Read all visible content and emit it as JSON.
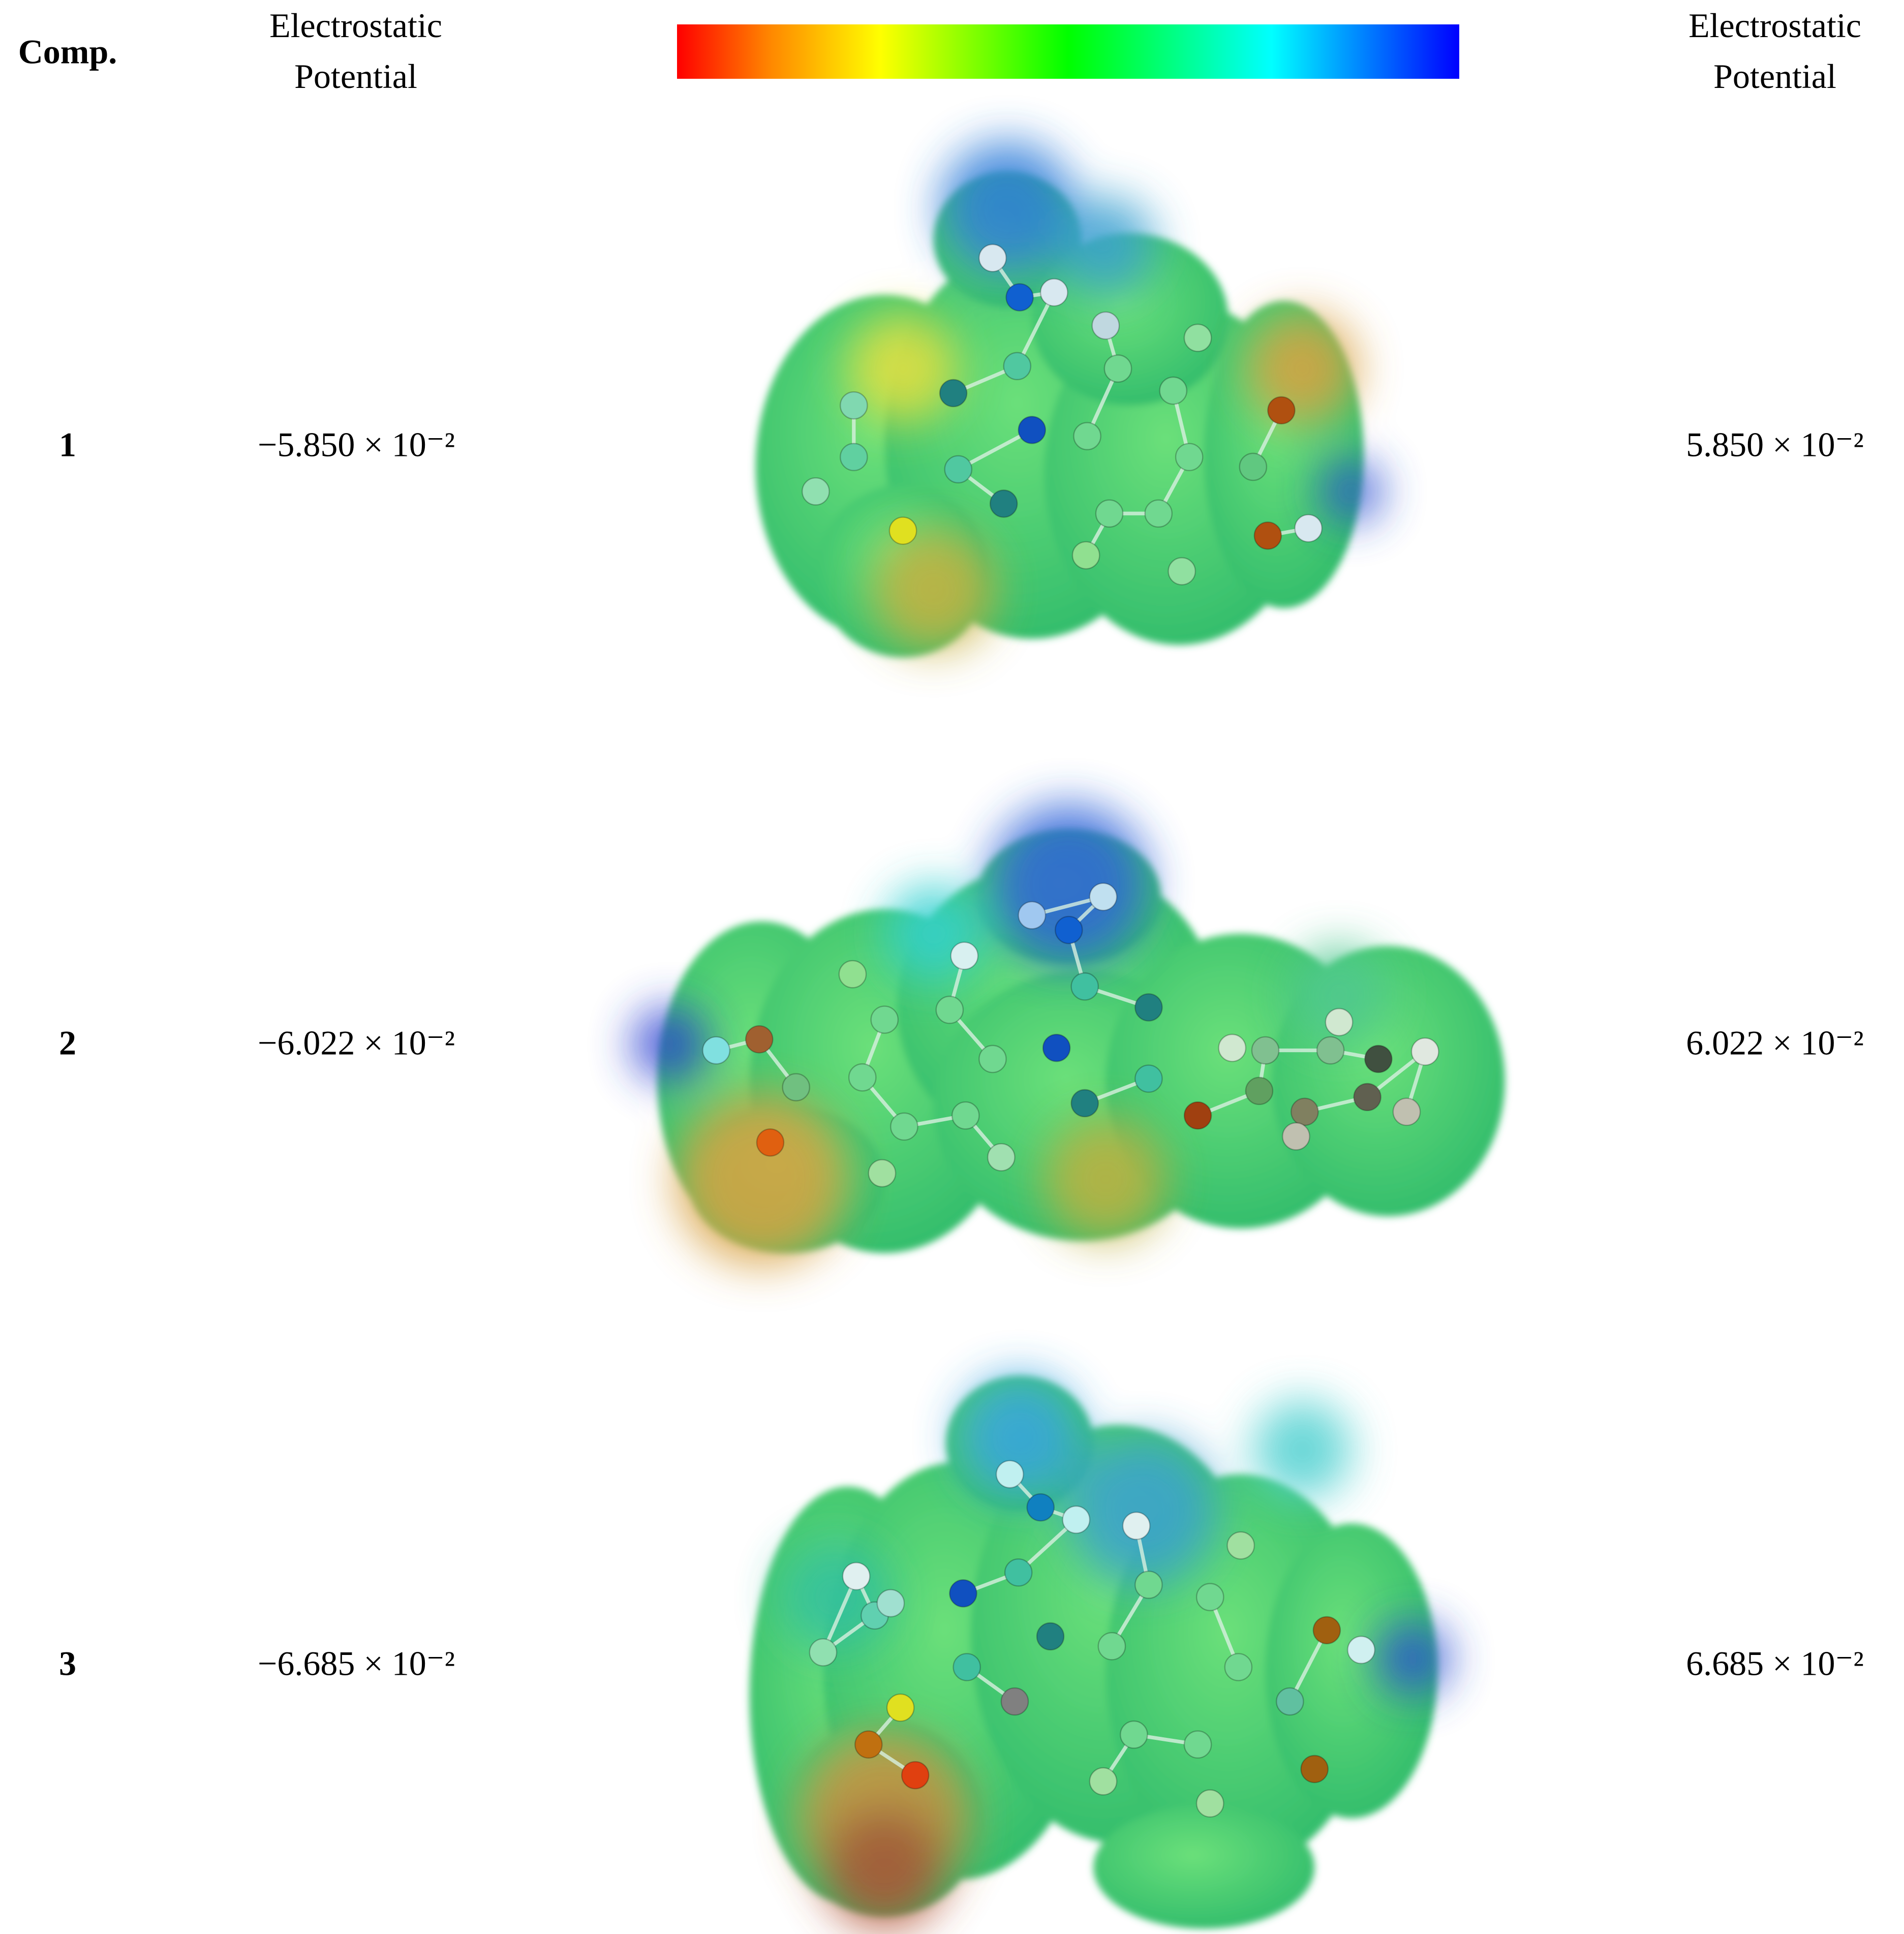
{
  "header": {
    "compound": "Comp.",
    "left_label": "Electrostatic Potential",
    "right_label": "Electrostatic Potential"
  },
  "rows": [
    {
      "compound": "1",
      "min_potential": "−5.850 × 10⁻²",
      "max_potential": "5.850 × 10⁻²"
    },
    {
      "compound": "2",
      "min_potential": "−6.022 × 10⁻²",
      "max_potential": "6.022 × 10⁻²"
    },
    {
      "compound": "3",
      "min_potential": "−6.685 × 10⁻²",
      "max_potential": "6.685 × 10⁻²"
    }
  ]
}
